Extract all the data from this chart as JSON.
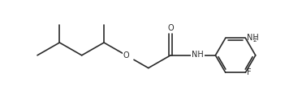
{
  "bg_color": "#ffffff",
  "line_color": "#2a2a2a",
  "text_color": "#2a2a2a",
  "figsize": [
    3.72,
    1.07
  ],
  "dpi": 100,
  "bond_lw": 1.2,
  "font_size": 7.0,
  "font_size_sub": 5.2,
  "xlim": [
    0,
    37.2
  ],
  "ylim": [
    0,
    10.7
  ]
}
